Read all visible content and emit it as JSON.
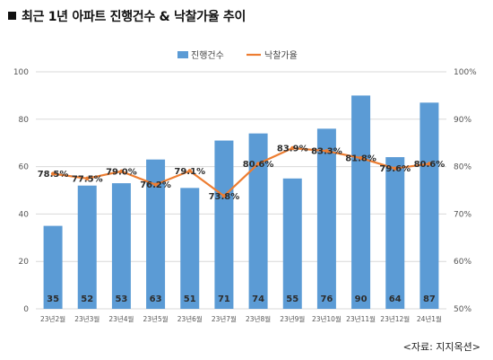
{
  "page": {
    "title": "최근 1년 아파트 진행건수 & 낙찰가율 추이",
    "source": "<자료: 지지옥션>"
  },
  "colors": {
    "bar": "#5b9bd5",
    "line": "#ed7d31",
    "grid": "#d9d9d9"
  },
  "chart_data": {
    "type": "bar+line",
    "title": "최근 1년 아파트 진행건수 & 낙찰가율 추이",
    "categories": [
      "23년2월",
      "23년3월",
      "23년4월",
      "23년5월",
      "23년6월",
      "23년7월",
      "23년8월",
      "23년9월",
      "23년10월",
      "23년11월",
      "23년12월",
      "24년1월"
    ],
    "series": [
      {
        "name": "진행건수",
        "type": "bar",
        "axis": "left",
        "values": [
          35,
          52,
          53,
          63,
          51,
          71,
          74,
          55,
          76,
          90,
          64,
          87
        ],
        "labels": [
          "35",
          "52",
          "53",
          "63",
          "51",
          "71",
          "74",
          "55",
          "76",
          "90",
          "64",
          "87"
        ]
      },
      {
        "name": "낙찰가율",
        "type": "line",
        "axis": "right",
        "values": [
          78.5,
          77.5,
          79.0,
          76.2,
          79.1,
          73.8,
          80.6,
          83.9,
          83.3,
          81.8,
          79.6,
          80.6
        ],
        "labels": [
          "78.5%",
          "77.5%",
          "79.0%",
          "76.2%",
          "79.1%",
          "73.8%",
          "80.6%",
          "83.9%",
          "83.3%",
          "81.8%",
          "79.6%",
          "80.6%"
        ]
      }
    ],
    "y_left": {
      "min": 0,
      "max": 100,
      "ticks": [
        "0",
        "20",
        "40",
        "60",
        "80",
        "100"
      ],
      "tick_values": [
        0,
        20,
        40,
        60,
        80,
        100
      ]
    },
    "y_right": {
      "min": 50,
      "max": 100,
      "ticks": [
        "50%",
        "60%",
        "70%",
        "80%",
        "90%",
        "100%"
      ],
      "tick_values": [
        50,
        60,
        70,
        80,
        90,
        100
      ]
    },
    "grid": true,
    "legend": "top-center"
  }
}
